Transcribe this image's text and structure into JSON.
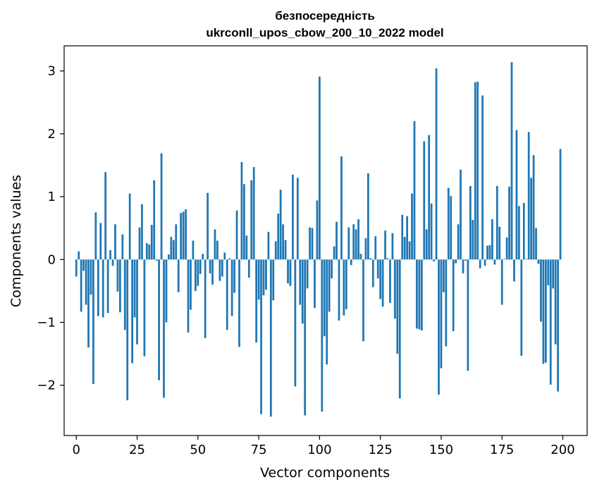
{
  "chart_data": {
    "type": "bar",
    "title": "безпосередність",
    "subtitle": "ukrconll_upos_cbow_200_10_2022 model",
    "xlabel": "Vector components",
    "ylabel": "Components values",
    "xlim": [
      -5,
      210
    ],
    "ylim": [
      -2.8,
      3.4
    ],
    "xticks": [
      0,
      25,
      50,
      75,
      100,
      125,
      150,
      175,
      200
    ],
    "yticks": [
      -2,
      -1,
      0,
      1,
      2,
      3
    ],
    "grid": false,
    "bar_color": "#1f77b4",
    "x": [
      0,
      1,
      2,
      3,
      4,
      5,
      6,
      7,
      8,
      9,
      10,
      11,
      12,
      13,
      14,
      15,
      16,
      17,
      18,
      19,
      20,
      21,
      22,
      23,
      24,
      25,
      26,
      27,
      28,
      29,
      30,
      31,
      32,
      33,
      34,
      35,
      36,
      37,
      38,
      39,
      40,
      41,
      42,
      43,
      44,
      45,
      46,
      47,
      48,
      49,
      50,
      51,
      52,
      53,
      54,
      55,
      56,
      57,
      58,
      59,
      60,
      61,
      62,
      63,
      64,
      65,
      66,
      67,
      68,
      69,
      70,
      71,
      72,
      73,
      74,
      75,
      76,
      77,
      78,
      79,
      80,
      81,
      82,
      83,
      84,
      85,
      86,
      87,
      88,
      89,
      90,
      91,
      92,
      93,
      94,
      95,
      96,
      97,
      98,
      99,
      100,
      101,
      102,
      103,
      104,
      105,
      106,
      107,
      108,
      109,
      110,
      111,
      112,
      113,
      114,
      115,
      116,
      117,
      118,
      119,
      120,
      121,
      122,
      123,
      124,
      125,
      126,
      127,
      128,
      129,
      130,
      131,
      132,
      133,
      134,
      135,
      136,
      137,
      138,
      139,
      140,
      141,
      142,
      143,
      144,
      145,
      146,
      147,
      148,
      149,
      150,
      151,
      152,
      153,
      154,
      155,
      156,
      157,
      158,
      159,
      160,
      161,
      162,
      163,
      164,
      165,
      166,
      167,
      168,
      169,
      170,
      171,
      172,
      173,
      174,
      175,
      176,
      177,
      178,
      179,
      180,
      181,
      182,
      183,
      184,
      185,
      186,
      187,
      188,
      189,
      190,
      191,
      192,
      193,
      194,
      195,
      196,
      197,
      198,
      199
    ],
    "values": [
      -0.27,
      0.13,
      -0.83,
      -0.18,
      -0.72,
      -1.4,
      -0.56,
      -1.98,
      0.75,
      -0.9,
      0.58,
      -0.92,
      1.39,
      -0.85,
      0.15,
      -0.1,
      0.56,
      -0.51,
      -0.84,
      0.4,
      -1.12,
      -2.24,
      1.05,
      -1.65,
      -0.92,
      -1.35,
      0.51,
      0.88,
      -1.54,
      0.26,
      0.24,
      0.55,
      1.26,
      -0.02,
      -1.92,
      1.69,
      -2.2,
      -1.0,
      0.08,
      0.36,
      0.31,
      0.56,
      -0.52,
      0.74,
      0.76,
      0.8,
      -1.16,
      -0.8,
      0.3,
      -0.5,
      -0.42,
      -0.23,
      0.09,
      -1.25,
      1.06,
      -0.22,
      -0.4,
      0.48,
      0.3,
      -0.34,
      -0.27,
      0.11,
      -1.12,
      0.02,
      -0.9,
      -0.53,
      0.78,
      -1.39,
      1.55,
      1.2,
      0.38,
      -0.29,
      1.26,
      1.47,
      -1.32,
      -0.64,
      -2.46,
      -0.57,
      -0.48,
      0.44,
      -2.5,
      -0.65,
      0.29,
      0.73,
      1.11,
      0.56,
      0.31,
      -0.38,
      -0.42,
      1.35,
      -2.02,
      1.3,
      -0.72,
      -1.02,
      -2.48,
      -0.46,
      0.51,
      0.5,
      -0.77,
      0.94,
      2.91,
      -2.42,
      -1.22,
      -1.67,
      -0.83,
      -0.3,
      0.21,
      0.6,
      -0.97,
      1.64,
      -0.89,
      -0.79,
      0.51,
      -0.09,
      0.56,
      0.48,
      0.64,
      0.09,
      -1.3,
      0.34,
      1.37,
      0.02,
      -0.44,
      0.37,
      -0.3,
      -0.63,
      -0.75,
      0.46,
      0.02,
      -0.69,
      0.42,
      -0.94,
      -1.5,
      -2.21,
      0.71,
      0.36,
      0.69,
      0.29,
      1.05,
      2.2,
      -1.1,
      -1.11,
      -1.13,
      1.88,
      0.48,
      1.98,
      0.89,
      -0.03,
      3.04,
      -2.15,
      -1.73,
      -0.52,
      -1.38,
      1.14,
      1.01,
      -1.14,
      -0.06,
      0.56,
      1.43,
      -0.22,
      -0.02,
      -1.77,
      1.17,
      0.63,
      2.82,
      2.83,
      -0.14,
      2.61,
      -0.1,
      0.22,
      0.23,
      0.64,
      -0.08,
      1.17,
      0.52,
      -0.72,
      0.01,
      0.35,
      1.16,
      3.14,
      -0.35,
      2.06,
      0.85,
      -1.53,
      0.9,
      0.01,
      2.03,
      1.3,
      1.66,
      0.5,
      -0.07,
      -0.99,
      -1.66,
      -1.64,
      -0.41,
      -1.99,
      -0.46,
      -1.35,
      -2.1,
      1.76
    ]
  }
}
